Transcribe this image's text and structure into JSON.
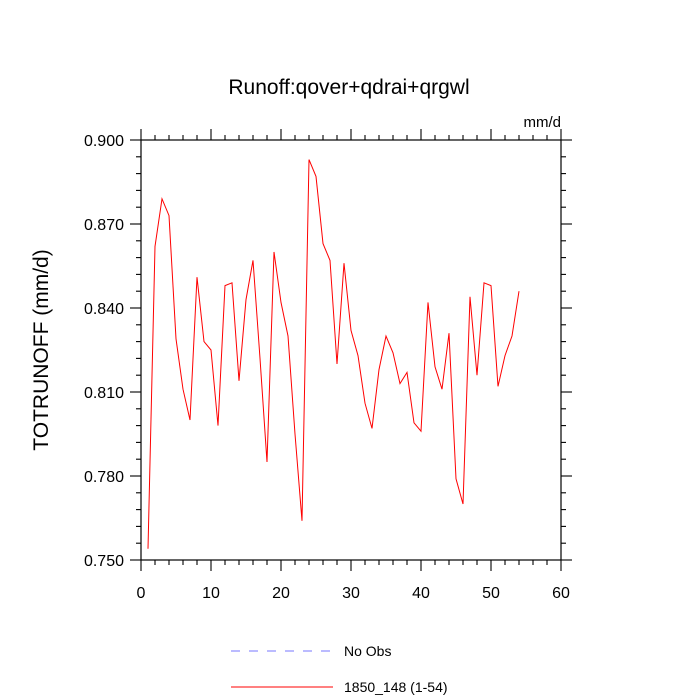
{
  "chart_data": {
    "type": "line",
    "title": "Runoff:qover+qdrai+qrgwl",
    "units": "mm/d",
    "xlabel": "",
    "ylabel": "TOTRUNOFF  (mm/d)",
    "xlim": [
      0,
      60
    ],
    "ylim": [
      0.75,
      0.9
    ],
    "xticks": [
      "0",
      "10",
      "20",
      "30",
      "40",
      "50",
      "60"
    ],
    "yticks": [
      "0.750",
      "0.780",
      "0.810",
      "0.840",
      "0.870",
      "0.900"
    ],
    "grid": false,
    "legend_position": "bottom-center",
    "series": [
      {
        "name": "No Obs",
        "color": "#7777ff",
        "dash": "dashed",
        "x": [],
        "y": []
      },
      {
        "name": "1850_148 (1-54)",
        "color": "#ff0000",
        "dash": "solid",
        "x": [
          1,
          2,
          3,
          4,
          5,
          6,
          7,
          8,
          9,
          10,
          11,
          12,
          13,
          14,
          15,
          16,
          17,
          18,
          19,
          20,
          21,
          22,
          23,
          24,
          25,
          26,
          27,
          28,
          29,
          30,
          31,
          32,
          33,
          34,
          35,
          36,
          37,
          38,
          39,
          40,
          41,
          42,
          43,
          44,
          45,
          46,
          47,
          48,
          49,
          50,
          51,
          52,
          53,
          54
        ],
        "y": [
          0.754,
          0.862,
          0.879,
          0.873,
          0.829,
          0.811,
          0.8,
          0.851,
          0.828,
          0.825,
          0.798,
          0.848,
          0.849,
          0.814,
          0.843,
          0.857,
          0.822,
          0.785,
          0.86,
          0.842,
          0.83,
          0.795,
          0.764,
          0.893,
          0.887,
          0.863,
          0.857,
          0.82,
          0.856,
          0.832,
          0.823,
          0.806,
          0.797,
          0.818,
          0.83,
          0.824,
          0.813,
          0.817,
          0.799,
          0.796,
          0.842,
          0.819,
          0.811,
          0.831,
          0.779,
          0.77,
          0.844,
          0.816,
          0.849,
          0.848,
          0.812,
          0.823,
          0.83,
          0.846
        ]
      }
    ]
  }
}
